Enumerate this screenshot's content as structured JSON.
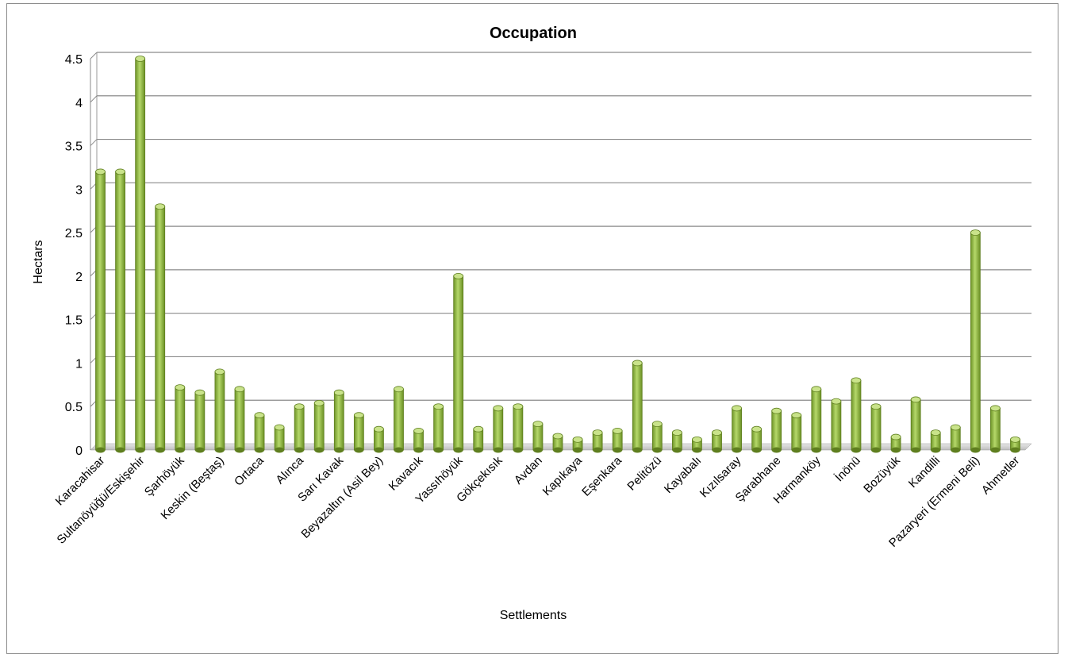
{
  "chart_data": {
    "type": "bar",
    "title": "Occupation",
    "xlabel": "Settlements",
    "ylabel": "Hectars",
    "ylim": [
      0,
      4.5
    ],
    "yticks": [
      "0",
      "0.5",
      "1",
      "1.5",
      "2",
      "2.5",
      "3",
      "3.5",
      "4",
      "4.5"
    ],
    "grid": true,
    "legend": "none",
    "bar_color": "#8db53c",
    "bar_color_dark": "#5f7f1f",
    "bar_color_light": "#c9e38a",
    "categories_labeled": [
      "Karacahisar",
      "Sultanöyüğü/Eskişehir",
      "Şarhöyük",
      "Keskin (Beştaş)",
      "Ortaca",
      "Alınca",
      "Sarı Kavak",
      "Beyazaltın (Asil Bey)",
      "Kavacık",
      "Yassıhöyük",
      "Gökçekısık",
      "Avdan",
      "Kapıkaya",
      "Eşenkara",
      "Pelitözü",
      "Kayabalı",
      "Kızılsaray",
      "Şarabhane",
      "Harmanköy",
      "İnönü",
      "Bozüyük",
      "Kandilli",
      "Pazaryeri (Ermeni Beli)",
      "Ahmetler"
    ],
    "label_every": 2,
    "values": [
      3.2,
      3.2,
      4.5,
      2.8,
      0.72,
      0.66,
      0.9,
      0.7,
      0.4,
      0.26,
      0.5,
      0.54,
      0.66,
      0.4,
      0.24,
      0.7,
      0.22,
      0.5,
      2.0,
      0.24,
      0.48,
      0.5,
      0.3,
      0.16,
      0.12,
      0.2,
      0.22,
      1.0,
      0.3,
      0.2,
      0.12,
      0.2,
      0.48,
      0.24,
      0.45,
      0.4,
      0.7,
      0.56,
      0.8,
      0.5,
      0.15,
      0.58,
      0.2,
      0.26,
      2.5,
      0.48,
      0.12
    ]
  }
}
